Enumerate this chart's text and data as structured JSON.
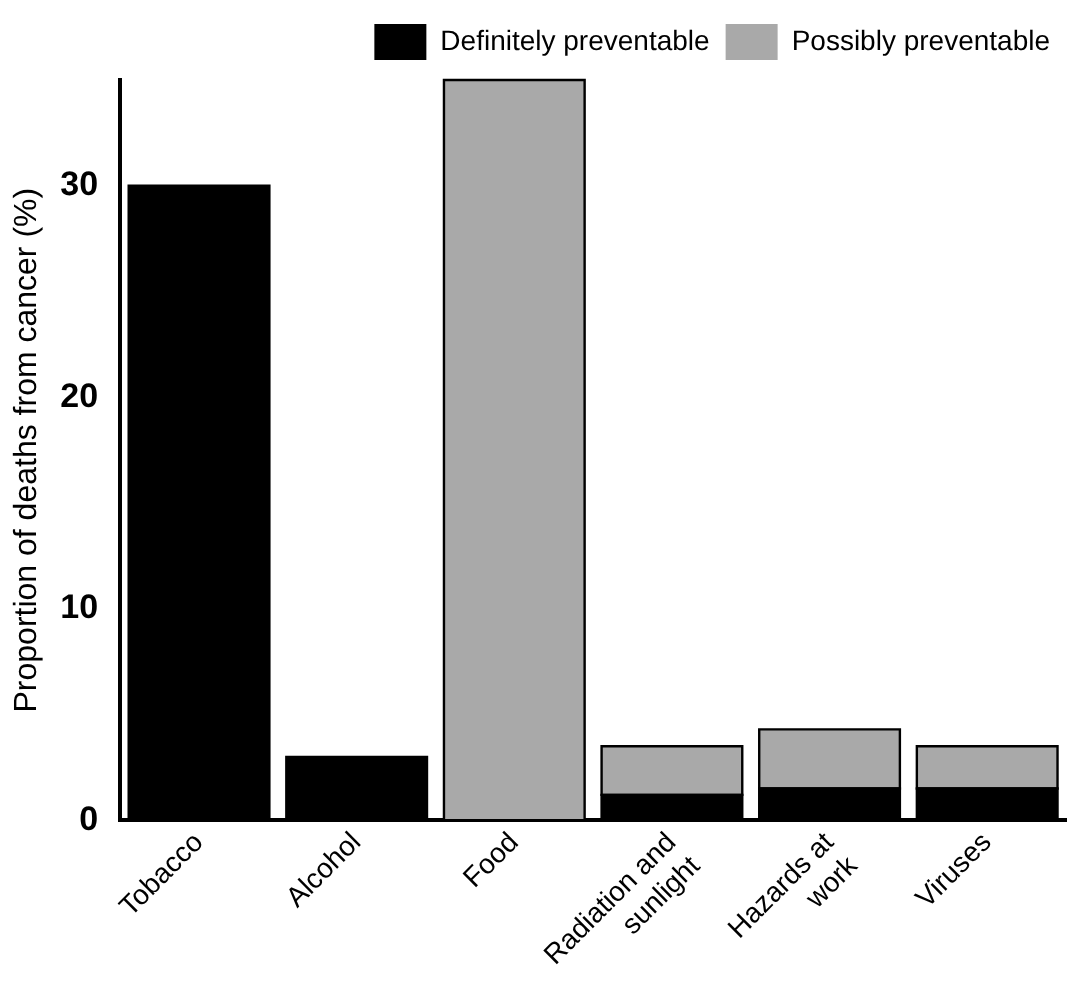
{
  "chart_data": {
    "type": "bar",
    "ylabel": "Proportion of deaths from cancer (%)",
    "categories": [
      "Tobacco",
      "Alcohol",
      "Food",
      "Radiation and sunlight",
      "Hazards at work",
      "Viruses"
    ],
    "series": [
      {
        "name": "Definitely preventable",
        "color": "#000000",
        "values": [
          30,
          3,
          null,
          1.2,
          1.5,
          1.5
        ]
      },
      {
        "name": "Possibly preventable",
        "color": "#a9a9a9",
        "values": [
          null,
          null,
          35,
          2.3,
          2.8,
          2.0
        ]
      }
    ],
    "stacked": true,
    "ylim": [
      0,
      35
    ],
    "yticks": [
      0,
      10,
      20,
      30
    ],
    "grid": false,
    "legend": "top right"
  }
}
